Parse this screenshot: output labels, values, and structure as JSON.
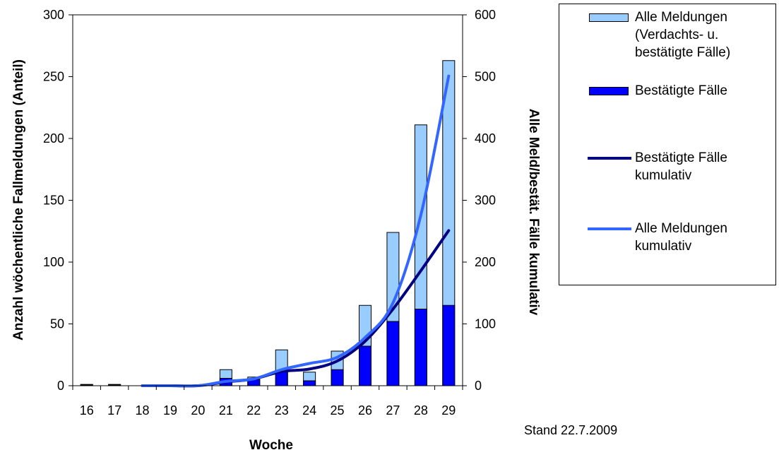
{
  "chart_data": {
    "type": "bar",
    "xlabel": "Woche",
    "ylabel_left": "Anzahl wöchentliche Fallmeldungen (Anteil)",
    "ylabel_right": "Alle Meld/bestät. Fälle kumulativ",
    "ylim_left": [
      0,
      300
    ],
    "ylim_right": [
      0,
      600
    ],
    "yticks_left": [
      "0",
      "50",
      "100",
      "150",
      "200",
      "250",
      "300"
    ],
    "yticks_right": [
      "0",
      "100",
      "200",
      "300",
      "400",
      "500",
      "600"
    ],
    "categories": [
      "16",
      "17",
      "18",
      "19",
      "20",
      "21",
      "22",
      "23",
      "24",
      "25",
      "26",
      "27",
      "28",
      "29"
    ],
    "series": [
      {
        "name": "Alle Meldungen (Verdachts- u. bestätigte Fälle)",
        "kind": "bar",
        "axis": "left",
        "color": "#99CCFF",
        "values": [
          1,
          1,
          0,
          0,
          0,
          13,
          7,
          29,
          11,
          28,
          65,
          124,
          211,
          263
        ]
      },
      {
        "name": "Bestätigte Fälle",
        "kind": "bar",
        "axis": "left",
        "color": "#0000FF",
        "values": [
          1,
          1,
          0,
          0,
          0,
          6,
          5,
          12,
          4,
          13,
          32,
          52,
          62,
          65
        ]
      },
      {
        "name": "Bestätigte Fälle kumulativ",
        "kind": "line",
        "axis": "right",
        "color": "#000080",
        "values": [
          0,
          0,
          0,
          0,
          0,
          6,
          11,
          23,
          27,
          40,
          72,
          124,
          186,
          251
        ]
      },
      {
        "name": "Alle Meldungen kumulativ",
        "kind": "line",
        "axis": "right",
        "color": "#3366FF",
        "values": [
          0,
          0,
          0,
          0,
          0,
          7,
          11,
          26,
          36,
          46,
          78,
          134,
          276,
          501
        ]
      }
    ],
    "legend_position": "right",
    "grid": false
  },
  "legend": {
    "items": [
      {
        "label": "Alle Meldungen\n(Verdachts- u.\nbestätigte Fälle)",
        "kind": "bar",
        "color": "#99CCFF"
      },
      {
        "label": "Bestätigte Fälle",
        "kind": "bar",
        "color": "#0000FF"
      },
      {
        "label": "Bestätigte Fälle\nkumulativ",
        "kind": "line",
        "color": "#000080"
      },
      {
        "label": "Alle Meldungen\nkumulativ",
        "kind": "line",
        "color": "#3366FF"
      }
    ]
  },
  "footer": {
    "stand": "Stand 22.7.2009"
  }
}
